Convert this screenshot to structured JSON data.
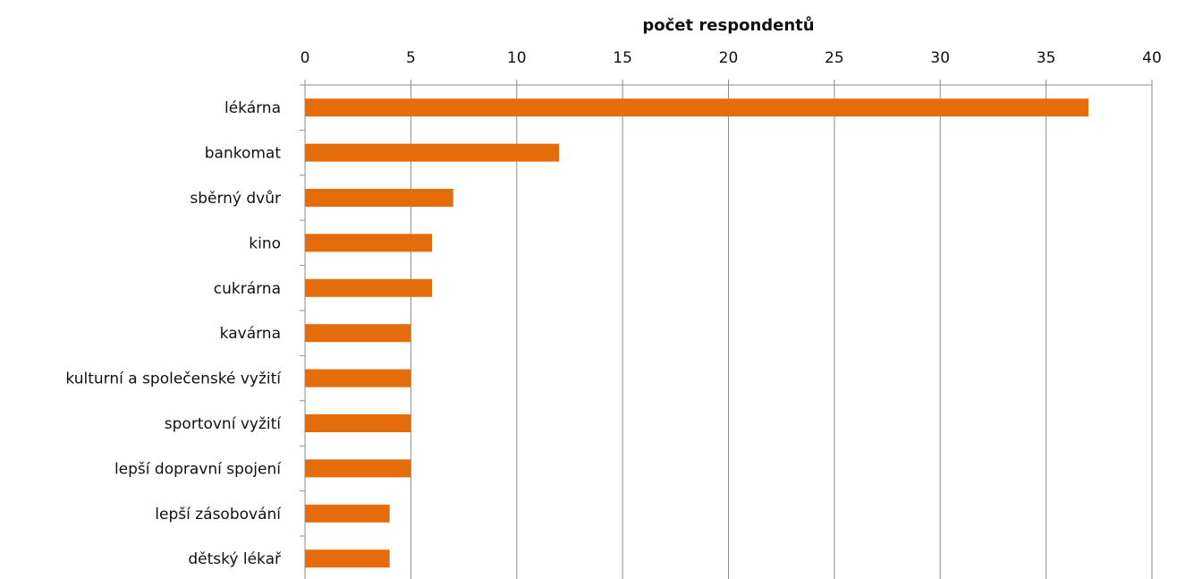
{
  "chart_data": {
    "type": "bar",
    "orientation": "horizontal",
    "title": "",
    "xlabel": "počet respondentů",
    "ylabel": "",
    "xlim": [
      0,
      40
    ],
    "x_ticks": [
      0,
      5,
      10,
      15,
      20,
      25,
      30,
      35,
      40
    ],
    "x_tick_labels": [
      "0",
      "5",
      "10",
      "15",
      "20",
      "25",
      "30",
      "35",
      "40"
    ],
    "x_axis_position": "top",
    "grid": true,
    "bar_color": "#E46C0A",
    "categories": [
      "lékárna",
      "bankomat",
      "sběrný dvůr",
      "kino",
      "cukrárna",
      "kavárna",
      "kulturní a společenské vyžití",
      "sportovní vyžití",
      "lepší dopravní spojení",
      "lepší zásobování",
      "dětský lékař"
    ],
    "values": [
      37,
      12,
      7,
      6,
      6,
      5,
      5,
      5,
      5,
      4,
      4
    ]
  }
}
